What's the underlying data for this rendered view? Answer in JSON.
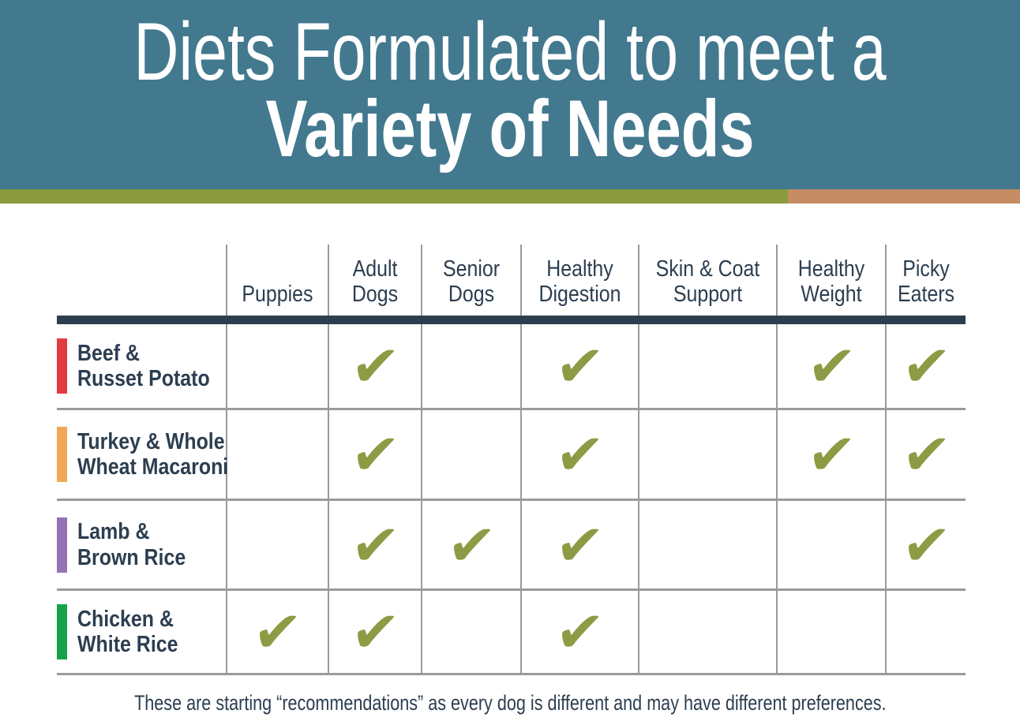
{
  "header": {
    "title_line1": "Diets Formulated to meet a",
    "title_line2": "Variety of Needs"
  },
  "table": {
    "columns": [
      "Puppies",
      "Adult Dogs",
      "Senior Dogs",
      "Healthy Digestion",
      "Skin & Coat Support",
      "Healthy Weight",
      "Picky Eaters"
    ],
    "check_glyph": "✔",
    "rows": [
      {
        "line1": "Beef &",
        "line2": "Russet Potato",
        "bar_color": "#E13B41",
        "checks": [
          false,
          true,
          false,
          true,
          false,
          true,
          true
        ]
      },
      {
        "line1": "Turkey & Whole",
        "line2": "Wheat Macaroni",
        "bar_color": "#F0A757",
        "checks": [
          false,
          true,
          false,
          true,
          false,
          true,
          true
        ]
      },
      {
        "line1": "Lamb &",
        "line2": "Brown Rice",
        "bar_color": "#9472B4",
        "checks": [
          false,
          true,
          true,
          true,
          false,
          false,
          true
        ]
      },
      {
        "line1": "Chicken &",
        "line2": "White Rice",
        "bar_color": "#16A24A",
        "checks": [
          true,
          true,
          false,
          true,
          false,
          false,
          false
        ]
      }
    ]
  },
  "footnote": "These are starting “recommendations” as every dog is different and may have different preferences.",
  "colors": {
    "header_bg": "#42798F",
    "strip_green": "#8C9A3E",
    "strip_orange": "#C68D64",
    "title_text": "#FFFFFF",
    "table_text": "#2C3E50",
    "header_rule": "#2C3E50",
    "grid_line": "#9A9A9A",
    "check": "#8D9C44"
  },
  "chart_data": {
    "type": "table",
    "title": "Diets Formulated to meet a Variety of Needs",
    "columns": [
      "Puppies",
      "Adult Dogs",
      "Senior Dogs",
      "Healthy Digestion",
      "Skin & Coat Support",
      "Healthy Weight",
      "Picky Eaters"
    ],
    "rows": [
      {
        "name": "Beef & Russet Potato",
        "color": "#E13B41",
        "checked_columns": [
          "Adult Dogs",
          "Healthy Digestion",
          "Healthy Weight",
          "Picky Eaters"
        ]
      },
      {
        "name": "Turkey & Whole Wheat Macaroni",
        "color": "#F0A757",
        "checked_columns": [
          "Adult Dogs",
          "Healthy Digestion",
          "Healthy Weight",
          "Picky Eaters"
        ]
      },
      {
        "name": "Lamb & Brown Rice",
        "color": "#9472B4",
        "checked_columns": [
          "Adult Dogs",
          "Senior Dogs",
          "Healthy Digestion",
          "Picky Eaters"
        ]
      },
      {
        "name": "Chicken & White Rice",
        "color": "#16A24A",
        "checked_columns": [
          "Puppies",
          "Adult Dogs",
          "Healthy Digestion"
        ]
      }
    ],
    "footnote": "These are starting “recommendations” as every dog is different and may have different preferences.",
    "legend_position": "none",
    "grid": true
  }
}
